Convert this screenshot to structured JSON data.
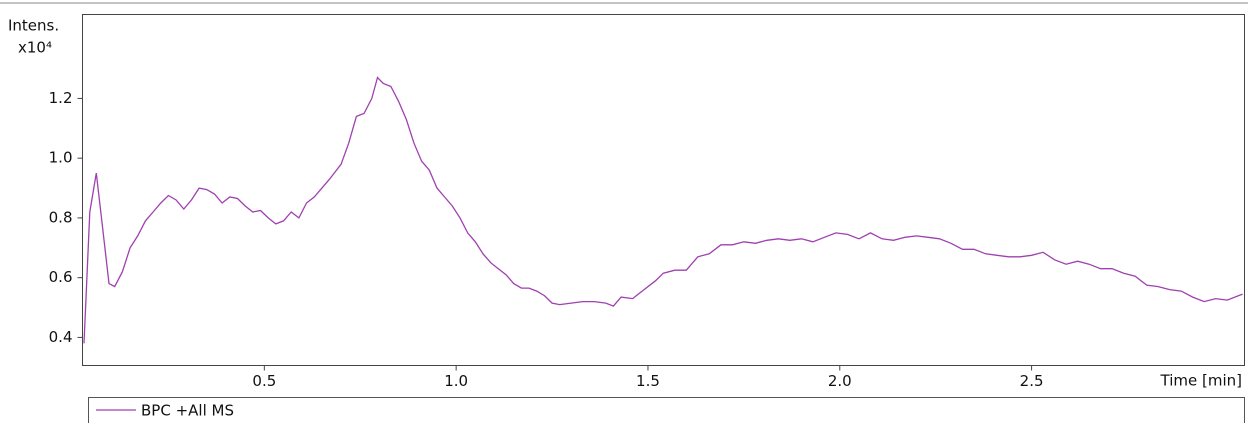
{
  "chart_data": {
    "type": "line",
    "ylabel": "Intens.",
    "yscale": "x10⁴",
    "xlabel": "Time [min]",
    "xlim": [
      0.026,
      3.055
    ],
    "ylim": [
      0.306,
      1.481
    ],
    "xticks": [
      0.5,
      {
        "value": 1,
        "label": "1.0"
      },
      1.5,
      {
        "value": 2,
        "label": "2.0"
      },
      2.5
    ],
    "yticks": [
      0.4,
      0.6,
      0.8,
      {
        "value": 1,
        "label": "1.0"
      },
      1.2
    ],
    "series": [
      {
        "name": "BPC +All MS",
        "color": "#a040b0",
        "x": [
          0.03,
          0.045,
          0.062,
          0.08,
          0.095,
          0.11,
          0.13,
          0.15,
          0.17,
          0.19,
          0.21,
          0.23,
          0.25,
          0.27,
          0.29,
          0.31,
          0.33,
          0.35,
          0.37,
          0.39,
          0.41,
          0.43,
          0.45,
          0.47,
          0.49,
          0.51,
          0.53,
          0.55,
          0.57,
          0.59,
          0.61,
          0.63,
          0.65,
          0.67,
          0.7,
          0.72,
          0.74,
          0.76,
          0.78,
          0.795,
          0.81,
          0.83,
          0.85,
          0.87,
          0.89,
          0.91,
          0.93,
          0.95,
          0.97,
          0.99,
          1.01,
          1.03,
          1.05,
          1.07,
          1.09,
          1.11,
          1.13,
          1.15,
          1.17,
          1.19,
          1.21,
          1.23,
          1.25,
          1.27,
          1.3,
          1.33,
          1.36,
          1.39,
          1.41,
          1.43,
          1.46,
          1.49,
          1.52,
          1.54,
          1.57,
          1.6,
          1.63,
          1.66,
          1.69,
          1.72,
          1.75,
          1.78,
          1.81,
          1.84,
          1.87,
          1.9,
          1.93,
          1.96,
          1.99,
          2.02,
          2.05,
          2.08,
          2.11,
          2.14,
          2.17,
          2.2,
          2.23,
          2.26,
          2.29,
          2.32,
          2.35,
          2.38,
          2.41,
          2.44,
          2.47,
          2.5,
          2.53,
          2.56,
          2.59,
          2.62,
          2.65,
          2.68,
          2.71,
          2.74,
          2.77,
          2.8,
          2.83,
          2.86,
          2.89,
          2.92,
          2.95,
          2.98,
          3.01,
          3.05
        ],
        "values": [
          0.38,
          0.82,
          0.95,
          0.75,
          0.58,
          0.57,
          0.62,
          0.7,
          0.74,
          0.79,
          0.82,
          0.85,
          0.875,
          0.86,
          0.83,
          0.86,
          0.9,
          0.895,
          0.88,
          0.85,
          0.87,
          0.865,
          0.84,
          0.82,
          0.825,
          0.8,
          0.78,
          0.79,
          0.82,
          0.8,
          0.85,
          0.87,
          0.9,
          0.93,
          0.98,
          1.05,
          1.14,
          1.15,
          1.2,
          1.27,
          1.25,
          1.24,
          1.19,
          1.13,
          1.05,
          0.99,
          0.96,
          0.9,
          0.87,
          0.84,
          0.8,
          0.75,
          0.72,
          0.68,
          0.65,
          0.63,
          0.61,
          0.58,
          0.565,
          0.565,
          0.555,
          0.54,
          0.515,
          0.51,
          0.515,
          0.52,
          0.52,
          0.515,
          0.505,
          0.535,
          0.53,
          0.56,
          0.59,
          0.615,
          0.625,
          0.625,
          0.67,
          0.68,
          0.71,
          0.71,
          0.72,
          0.715,
          0.725,
          0.73,
          0.725,
          0.73,
          0.72,
          0.735,
          0.75,
          0.745,
          0.73,
          0.75,
          0.73,
          0.725,
          0.735,
          0.74,
          0.735,
          0.73,
          0.715,
          0.695,
          0.695,
          0.68,
          0.675,
          0.67,
          0.67,
          0.675,
          0.685,
          0.66,
          0.645,
          0.655,
          0.645,
          0.63,
          0.63,
          0.615,
          0.605,
          0.575,
          0.57,
          0.56,
          0.555,
          0.535,
          0.52,
          0.53,
          0.525,
          0.545
        ]
      }
    ]
  }
}
